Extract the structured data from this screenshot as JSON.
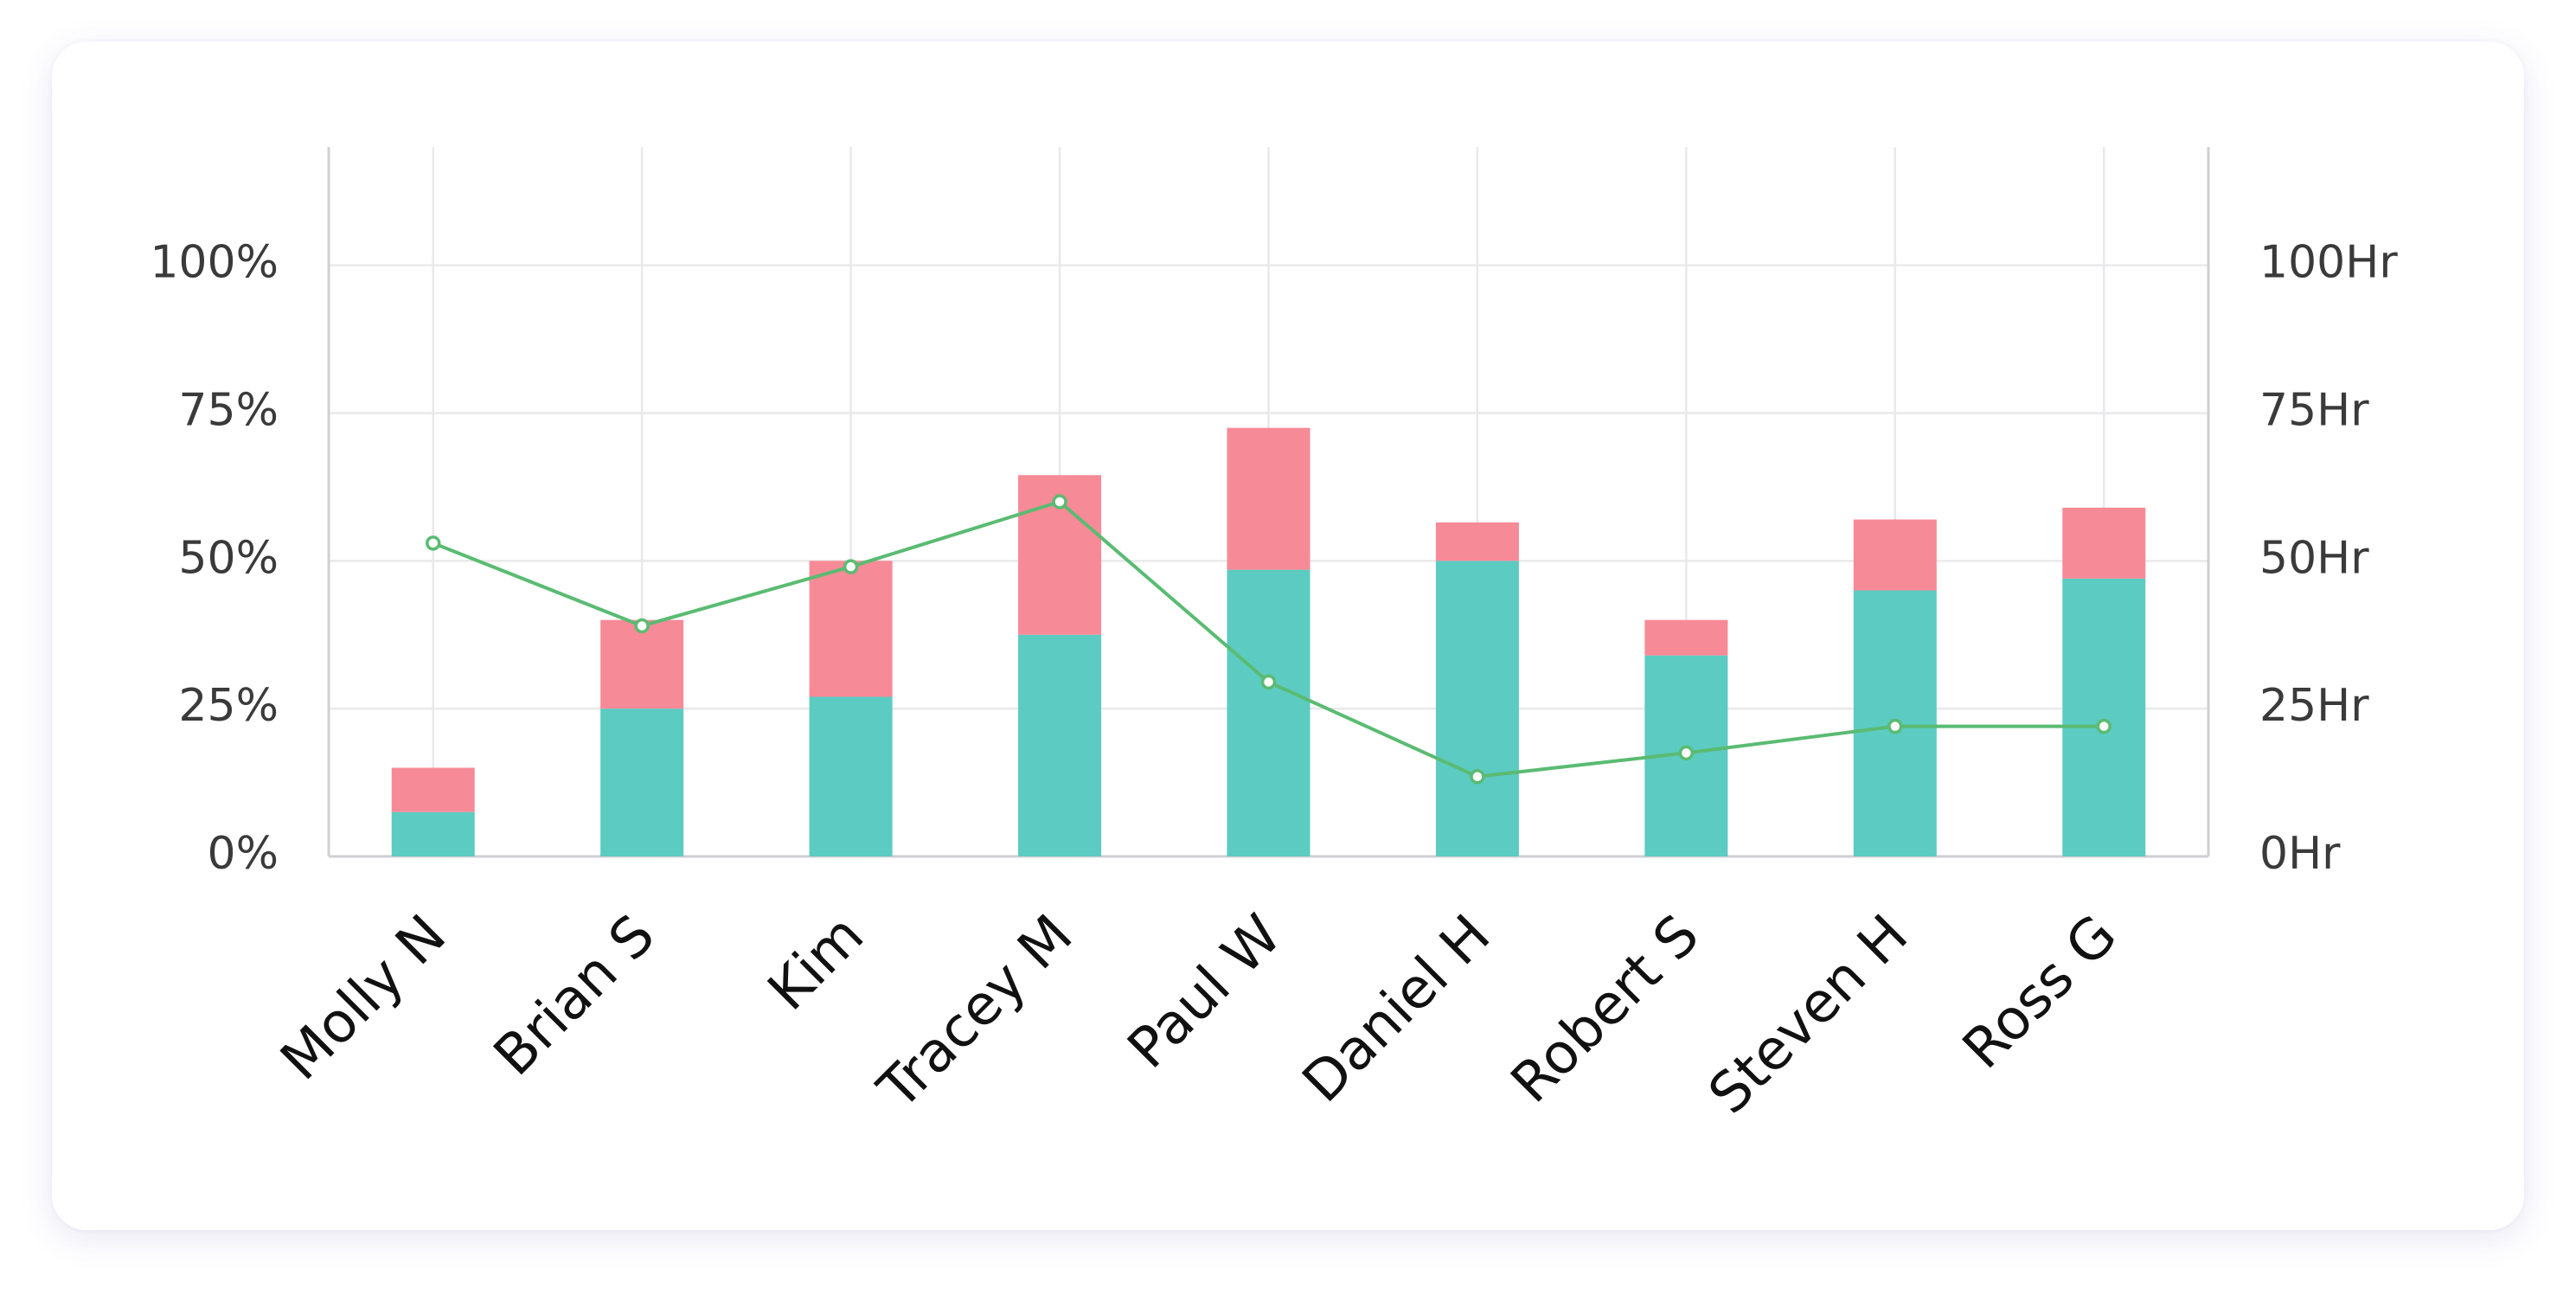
{
  "chart_data": {
    "type": "bar",
    "stacked": true,
    "categories": [
      "Molly N",
      "Brian S",
      "Kim",
      "Tracey M",
      "Paul W",
      "Daniel H",
      "Robert S",
      "Steven H",
      "Ross G"
    ],
    "series": [
      {
        "type": "bar",
        "axis": "left",
        "color": "#5ccbc1",
        "values": [
          7.5,
          25,
          27,
          37.5,
          48.5,
          50,
          34,
          45,
          47
        ]
      },
      {
        "type": "bar",
        "axis": "left",
        "color": "#f78a97",
        "values": [
          7.5,
          15,
          23,
          27,
          24,
          6.5,
          6,
          12,
          12
        ]
      },
      {
        "type": "line",
        "axis": "right",
        "color": "#5abb72",
        "values": [
          53,
          39,
          49,
          60,
          29.5,
          13.5,
          17.5,
          22,
          22
        ]
      }
    ],
    "y_left": {
      "min": 0,
      "max": 120,
      "ticks": [
        0,
        25,
        50,
        75,
        100
      ],
      "tick_labels": [
        "0%",
        "25%",
        "50%",
        "75%",
        "100%"
      ]
    },
    "y_right": {
      "min": 0,
      "max": 120,
      "ticks": [
        0,
        25,
        50,
        75,
        100
      ],
      "tick_labels": [
        "0Hr",
        "25Hr",
        "50Hr",
        "75Hr",
        "100Hr"
      ]
    },
    "grid": true,
    "legend": "none",
    "title": "",
    "xlabel": "",
    "ylabel": ""
  },
  "colors": {
    "grid": "#e9e9ec",
    "axis": "#cfcfd4",
    "line_point_fill": "#ffffff"
  }
}
